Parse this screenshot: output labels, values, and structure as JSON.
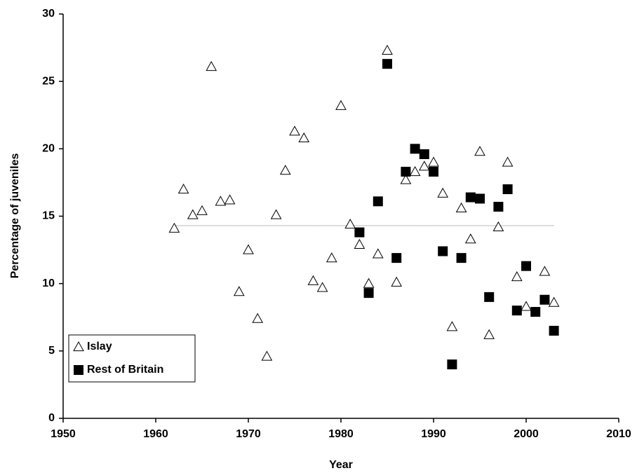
{
  "chart_data": {
    "type": "scatter",
    "x_label": "Year",
    "y_label": "Percentage of juveniles",
    "xlim": [
      1950,
      2010
    ],
    "xticks": [
      1950,
      1960,
      1970,
      1980,
      1990,
      2000,
      2010
    ],
    "ylim": [
      0,
      30
    ],
    "yticks": [
      0,
      5,
      10,
      15,
      20,
      25,
      30
    ],
    "grid": false,
    "legend": "lower left",
    "reference_line": {
      "value": 14.3,
      "from": 1962,
      "to": 2003,
      "color": "#777777"
    },
    "series": [
      {
        "name": "Islay",
        "marker": "triangle",
        "color": "#ffffff",
        "x": [
          1962,
          1963,
          1964,
          1965,
          1966,
          1967,
          1968,
          1969,
          1970,
          1971,
          1972,
          1973,
          1974,
          1975,
          1976,
          1977,
          1978,
          1979,
          1980,
          1981,
          1982,
          1983,
          1984,
          1985,
          1986,
          1987,
          1988,
          1989,
          1990,
          1991,
          1992,
          1993,
          1994,
          1995,
          1996,
          1997,
          1998,
          1999,
          2000,
          2002,
          2003
        ],
        "values": [
          14.1,
          17.0,
          15.1,
          15.4,
          26.1,
          16.1,
          16.2,
          9.4,
          12.5,
          7.4,
          4.6,
          15.1,
          18.4,
          21.3,
          20.8,
          10.2,
          9.7,
          11.9,
          23.2,
          14.4,
          12.9,
          10.0,
          12.2,
          27.3,
          10.1,
          17.7,
          18.3,
          18.7,
          19.0,
          16.7,
          6.8,
          15.6,
          13.3,
          19.8,
          6.2,
          14.2,
          19.0,
          10.5,
          8.3,
          10.9,
          8.6
        ]
      },
      {
        "name": "Rest of Britain",
        "marker": "square",
        "color": "#000000",
        "x": [
          1982,
          1983,
          1984,
          1985,
          1986,
          1987,
          1988,
          1989,
          1990,
          1991,
          1992,
          1993,
          1994,
          1995,
          1996,
          1997,
          1998,
          1999,
          2000,
          2001,
          2002,
          2003
        ],
        "values": [
          13.8,
          9.3,
          16.1,
          26.3,
          11.9,
          18.3,
          20.0,
          19.6,
          18.3,
          12.4,
          4.0,
          11.9,
          16.4,
          16.3,
          9.0,
          15.7,
          17.0,
          8.0,
          11.3,
          7.9,
          8.8,
          6.5
        ]
      }
    ]
  }
}
